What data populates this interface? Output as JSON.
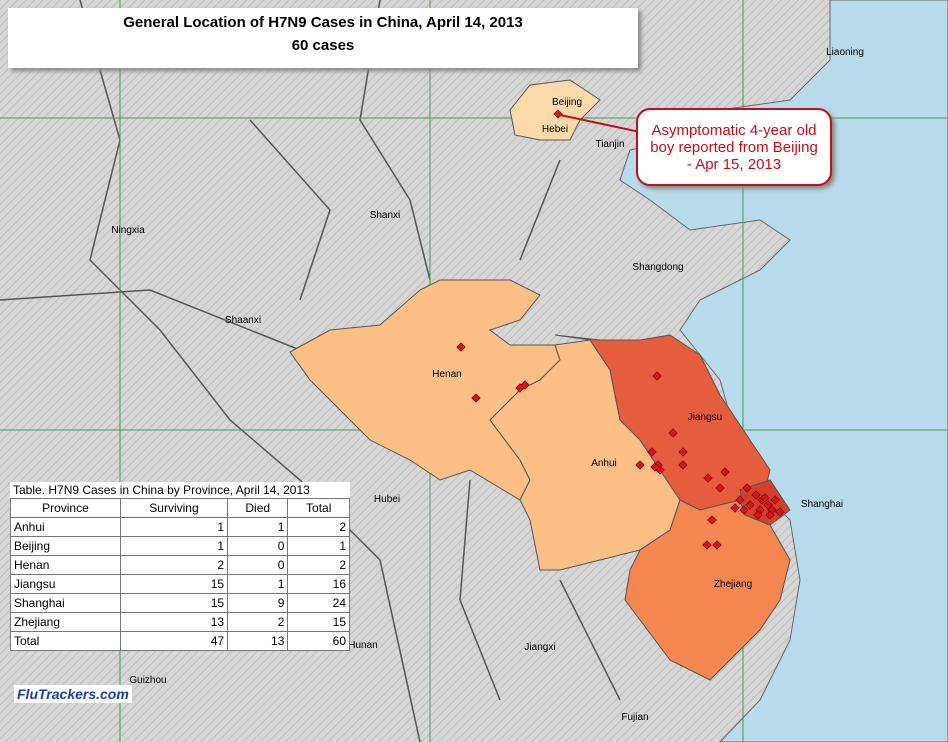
{
  "title": "General Location of  H7N9 Cases in China, April 14, 2013",
  "subtitle": "60 cases",
  "callout": "Asymptomatic 4-year old boy reported from Beijing - Apr 15, 2013",
  "map_labels": [
    "Liaoning",
    "Beijing",
    "Hebei",
    "Tianjin",
    "Ningxia",
    "Shanxi",
    "Shangdong",
    "Shaanxi",
    "Henan",
    "Jiangsu",
    "Anhui",
    "Hubei",
    "Shanghai",
    "Zhejiang",
    "Hunan",
    "Jiangxi",
    "Guizhou",
    "Fujian"
  ],
  "table": {
    "caption": "Table. H7N9  Cases in China by Province, April 14, 2013",
    "header": [
      "Province",
      "Surviving",
      "Died",
      "Total"
    ],
    "rows": [
      [
        "Anhui",
        1,
        1,
        2
      ],
      [
        "Beijing",
        1,
        0,
        1
      ],
      [
        "Henan",
        2,
        0,
        2
      ],
      [
        "Jiangsu",
        15,
        1,
        16
      ],
      [
        "Shanghai",
        15,
        9,
        24
      ],
      [
        "Zhejiang",
        13,
        2,
        15
      ],
      [
        "Total",
        47,
        13,
        60
      ]
    ]
  },
  "logo": "FluTrackers.com"
}
